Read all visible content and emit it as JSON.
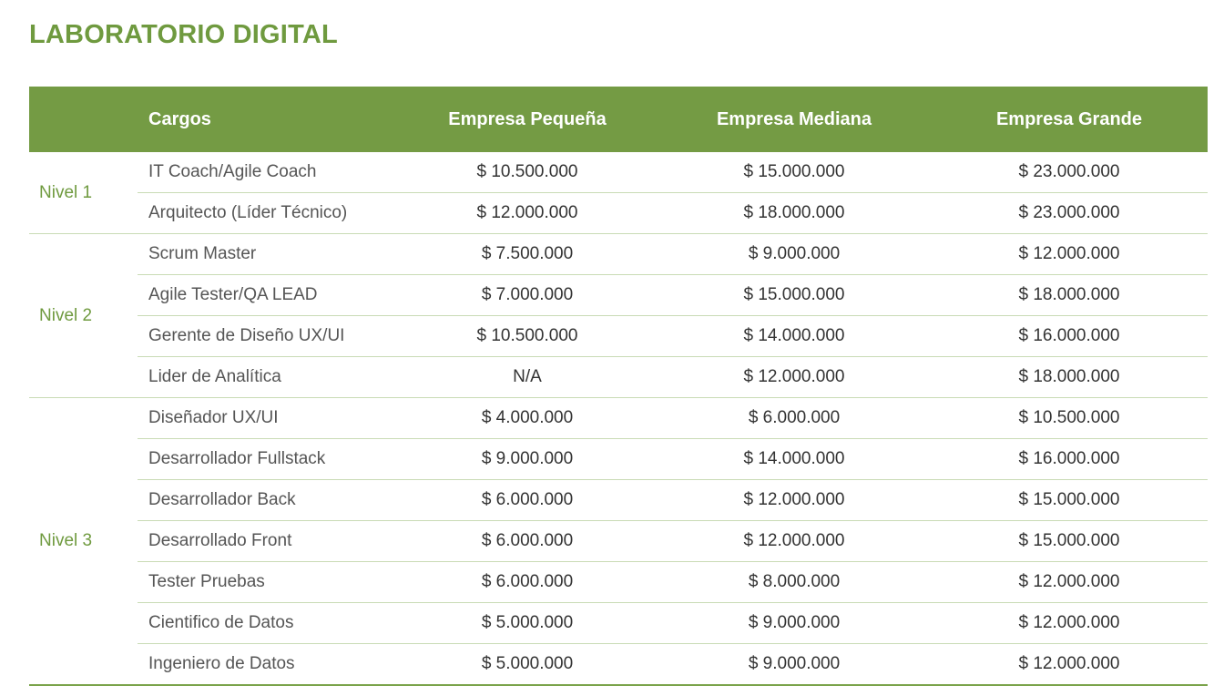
{
  "title": "LABORATORIO DIGITAL",
  "headers": {
    "cargos": "Cargos",
    "pequena": "Empresa Pequeña",
    "mediana": "Empresa Mediana",
    "grande": "Empresa Grande"
  },
  "groups": [
    {
      "level": "Nivel 1",
      "rows": [
        {
          "cargo": "IT Coach/Agile Coach",
          "pequena": "$ 10.500.000",
          "mediana": "$ 15.000.000",
          "grande": "$ 23.000.000"
        },
        {
          "cargo": "Arquitecto (Líder Técnico)",
          "pequena": "$ 12.000.000",
          "mediana": "$ 18.000.000",
          "grande": "$ 23.000.000"
        }
      ]
    },
    {
      "level": "Nivel 2",
      "rows": [
        {
          "cargo": "Scrum Master",
          "pequena": "$ 7.500.000",
          "mediana": "$ 9.000.000",
          "grande": "$ 12.000.000"
        },
        {
          "cargo": "Agile Tester/QA LEAD",
          "pequena": "$ 7.000.000",
          "mediana": "$ 15.000.000",
          "grande": "$ 18.000.000"
        },
        {
          "cargo": "Gerente de Diseño UX/UI",
          "pequena": "$ 10.500.000",
          "mediana": "$ 14.000.000",
          "grande": "$ 16.000.000"
        },
        {
          "cargo": "Lider de Analítica",
          "pequena": "N/A",
          "mediana": "$ 12.000.000",
          "grande": "$ 18.000.000"
        }
      ]
    },
    {
      "level": "Nivel 3",
      "rows": [
        {
          "cargo": "Diseñador UX/UI",
          "pequena": "$ 4.000.000",
          "mediana": "$ 6.000.000",
          "grande": "$ 10.500.000"
        },
        {
          "cargo": "Desarrollador Fullstack",
          "pequena": "$ 9.000.000",
          "mediana": "$ 14.000.000",
          "grande": "$ 16.000.000"
        },
        {
          "cargo": "Desarrollador Back",
          "pequena": "$ 6.000.000",
          "mediana": "$ 12.000.000",
          "grande": "$ 15.000.000"
        },
        {
          "cargo": "Desarrollado Front",
          "pequena": "$ 6.000.000",
          "mediana": "$ 12.000.000",
          "grande": "$ 15.000.000"
        },
        {
          "cargo": "Tester Pruebas",
          "pequena": "$ 6.000.000",
          "mediana": "$ 8.000.000",
          "grande": "$ 12.000.000"
        },
        {
          "cargo": "Cientifico de Datos",
          "pequena": "$ 5.000.000",
          "mediana": "$ 9.000.000",
          "grande": "$ 12.000.000"
        },
        {
          "cargo": "Ingeniero de Datos",
          "pequena": "$ 5.000.000",
          "mediana": "$ 9.000.000",
          "grande": "$ 12.000.000"
        }
      ]
    }
  ],
  "colors": {
    "accent": "#749b44",
    "title": "#6f9a3f",
    "divider": "#c9dbb5"
  }
}
